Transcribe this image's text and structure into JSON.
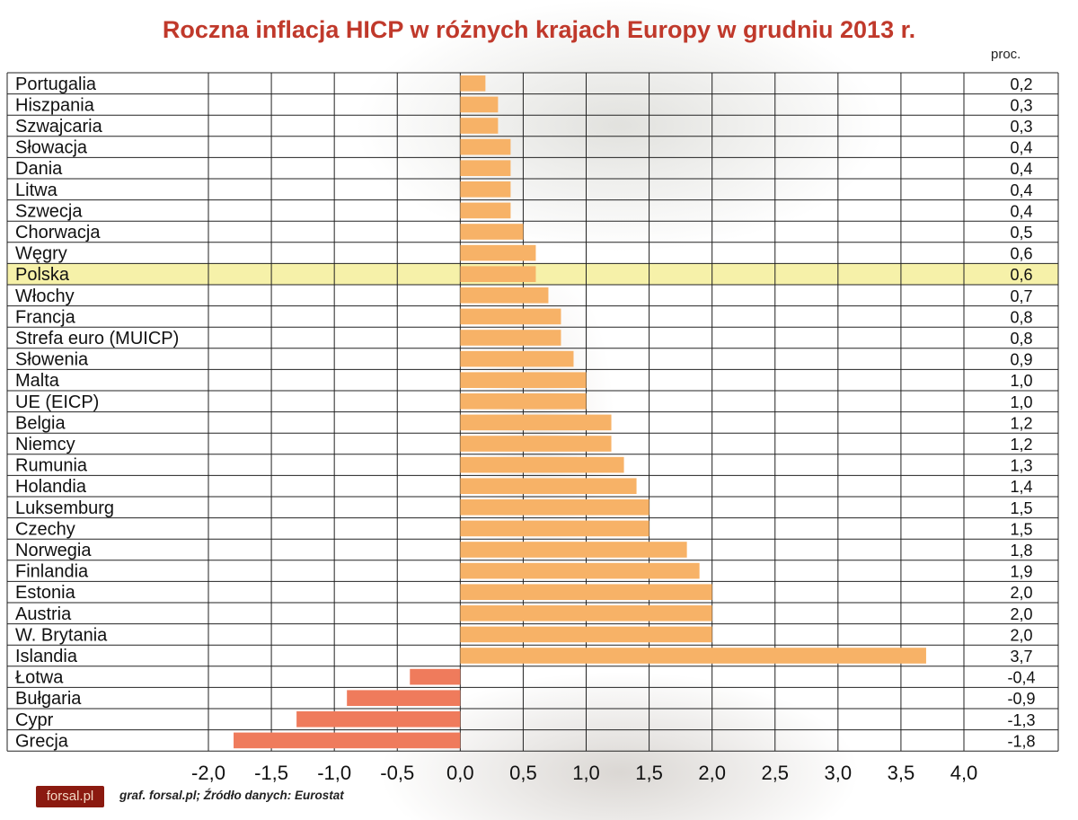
{
  "title": "Roczna inflacja HICP w różnych krajach Europy w grudniu 2013 r.",
  "unit": "proc.",
  "footer": {
    "logo": "forsal.pl",
    "source": "graf. forsal.pl; Źródło danych: Eurostat"
  },
  "colors": {
    "title": "#c0392b",
    "positive_bar": "#f7b267",
    "negative_bar": "#ef7b5c",
    "highlight_row": "#f6f1a9"
  },
  "chart_data": {
    "type": "bar",
    "orientation": "horizontal",
    "categories": [
      "Portugalia",
      "Hiszpania",
      "Szwajcaria",
      "Słowacja",
      "Dania",
      "Litwa",
      "Szwecja",
      "Chorwacja",
      "Węgry",
      "Polska",
      "Włochy",
      "Francja",
      "Strefa euro (MUICP)",
      "Słowenia",
      "Malta",
      "UE (EICP)",
      "Belgia",
      "Niemcy",
      "Rumunia",
      "Holandia",
      "Luksemburg",
      "Czechy",
      "Norwegia",
      "Finlandia",
      "Estonia",
      "Austria",
      "W. Brytania",
      "Islandia",
      "Łotwa",
      "Bułgaria",
      "Cypr",
      "Grecja"
    ],
    "values": [
      0.2,
      0.3,
      0.3,
      0.4,
      0.4,
      0.4,
      0.4,
      0.5,
      0.6,
      0.6,
      0.7,
      0.8,
      0.8,
      0.9,
      1.0,
      1.0,
      1.2,
      1.2,
      1.3,
      1.4,
      1.5,
      1.5,
      1.8,
      1.9,
      2.0,
      2.0,
      2.0,
      3.7,
      -0.4,
      -0.9,
      -1.3,
      -1.8
    ],
    "value_labels": [
      "0,2",
      "0,3",
      "0,3",
      "0,4",
      "0,4",
      "0,4",
      "0,4",
      "0,5",
      "0,6",
      "0,6",
      "0,7",
      "0,8",
      "0,8",
      "0,9",
      "1,0",
      "1,0",
      "1,2",
      "1,2",
      "1,3",
      "1,4",
      "1,5",
      "1,5",
      "1,8",
      "1,9",
      "2,0",
      "2,0",
      "2,0",
      "3,7",
      "-0,4",
      "-0,9",
      "-1,3",
      "-1,8"
    ],
    "highlight": "Polska",
    "xlim": [
      -2.0,
      4.0
    ],
    "xticks": [
      -2.0,
      -1.5,
      -1.0,
      -0.5,
      0.0,
      0.5,
      1.0,
      1.5,
      2.0,
      2.5,
      3.0,
      3.5,
      4.0
    ],
    "xtick_labels": [
      "-2,0",
      "-1,5",
      "-1,0",
      "-0,5",
      "0,0",
      "0,5",
      "1,0",
      "1,5",
      "2,0",
      "2,5",
      "3,0",
      "3,5",
      "4,0"
    ],
    "grid": true,
    "legend": "none"
  }
}
